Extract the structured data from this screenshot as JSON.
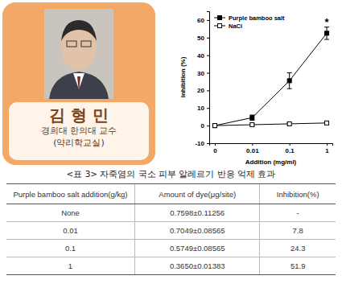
{
  "profile": {
    "name": "김 형 민",
    "affiliation": "경희대 한의대 교수",
    "department": "(약리학교실)"
  },
  "chart_data": {
    "type": "line",
    "categories": [
      "0",
      "0.01",
      "0.1",
      "1"
    ],
    "series": [
      {
        "name": "Purple bamboo salt",
        "color": "#000000",
        "marker": "square",
        "line_style": "solid",
        "values": [
          0,
          4.5,
          25.5,
          52.5
        ],
        "errors": [
          0.8,
          1.5,
          4.5,
          3.5
        ]
      },
      {
        "name": "NaCl",
        "color": "#000000",
        "marker": "open-square",
        "line_style": "solid",
        "values": [
          0,
          0.5,
          1,
          1.5
        ],
        "errors": [
          0.4,
          0.5,
          0.5,
          0.5
        ]
      }
    ],
    "x_label": "Addition (mg/ml)",
    "y_label": "Inhibition (%)",
    "ylim": [
      -10,
      65
    ],
    "yticks": [
      -10,
      0,
      10,
      20,
      30,
      40,
      50,
      60
    ],
    "legend": "upper left",
    "grid": false,
    "annotations": [
      {
        "text": "*",
        "category": "1",
        "series": 0
      }
    ]
  },
  "table": {
    "caption": "<표 3> 자죽염의 국소 피부 알레르기 반응 억제 효과",
    "header": [
      "Purple bamboo salt addition(g/kg)",
      "Amount of dye(μg/site)",
      "Inhibition(%)"
    ],
    "rows": [
      [
        "None",
        "0.7598±0.11256",
        "-"
      ],
      [
        "0.01",
        "0.7049±0.08565",
        "7.8"
      ],
      [
        "0.1",
        "0.5749±0.08565",
        "24.3"
      ],
      [
        "1",
        "0.3650±0.01383",
        "51.9"
      ]
    ]
  }
}
